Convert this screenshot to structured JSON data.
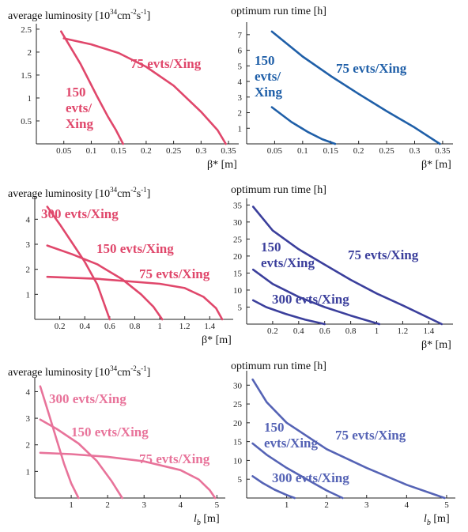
{
  "chart_data": [
    {
      "id": "p1",
      "type": "line",
      "title": "average luminosity",
      "title_unit": "[10",
      "title_exp1": "34",
      "title_mid": "cm",
      "title_exp2": "-2",
      "title_mid2": "s",
      "title_exp3": "-1",
      "title_end": "]",
      "xlabel_main": "β*",
      "xlabel_unit": "[m]",
      "xlim": [
        0,
        0.36
      ],
      "ylim": [
        0,
        2.55
      ],
      "xticks": [
        0.05,
        0.1,
        0.15,
        0.2,
        0.25,
        0.3,
        0.35
      ],
      "xtick_labels": [
        "0.05",
        "0.1",
        "0.15",
        "0.2",
        "0.25",
        "0.3",
        "0.35"
      ],
      "yticks": [
        0.5,
        1,
        1.5,
        2,
        2.5
      ],
      "ytick_labels": [
        "0.5",
        "1",
        "1.5",
        "2",
        "2.5"
      ],
      "color": "#e0476b",
      "series": [
        {
          "name": "75 evts/Xing",
          "label_lines": [
            "75 evts/Xing"
          ],
          "x": [
            0.05,
            0.1,
            0.15,
            0.2,
            0.25,
            0.3,
            0.33,
            0.345
          ],
          "y": [
            2.3,
            2.17,
            1.98,
            1.68,
            1.27,
            0.7,
            0.3,
            0
          ]
        },
        {
          "name": "150 evts/Xing",
          "label_lines": [
            "150",
            "evts/",
            "Xing"
          ],
          "x": [
            0.045,
            0.08,
            0.11,
            0.13,
            0.145,
            0.158
          ],
          "y": [
            2.45,
            1.75,
            1.05,
            0.6,
            0.3,
            0
          ]
        }
      ]
    },
    {
      "id": "p2",
      "type": "line",
      "title": "optimum run time [h]",
      "xlabel_main": "β*",
      "xlabel_unit": "[m]",
      "xlim": [
        0,
        0.36
      ],
      "ylim": [
        0,
        7.6
      ],
      "xticks": [
        0.05,
        0.1,
        0.15,
        0.2,
        0.25,
        0.3,
        0.35
      ],
      "xtick_labels": [
        "0.05",
        "0.1",
        "0.15",
        "0.2",
        "0.25",
        "0.3",
        "0.35"
      ],
      "yticks": [
        1,
        2,
        3,
        4,
        5,
        6,
        7
      ],
      "ytick_labels": [
        "1",
        "2",
        "3",
        "4",
        "5",
        "6",
        "7"
      ],
      "color": "#1f5fa8",
      "series": [
        {
          "name": "75 evts/Xing",
          "label_lines": [
            "75 evts/Xing"
          ],
          "x": [
            0.045,
            0.1,
            0.15,
            0.2,
            0.25,
            0.3,
            0.345
          ],
          "y": [
            7.2,
            5.6,
            4.35,
            3.2,
            2.1,
            1.05,
            0
          ]
        },
        {
          "name": "150 evts/Xing",
          "label_lines": [
            "150",
            "evts/",
            "Xing"
          ],
          "x": [
            0.045,
            0.08,
            0.11,
            0.135,
            0.158
          ],
          "y": [
            2.35,
            1.4,
            0.75,
            0.3,
            0
          ]
        }
      ]
    },
    {
      "id": "p3",
      "type": "line",
      "title": "average luminosity",
      "title_unit": "[10",
      "title_exp1": "34",
      "title_mid": "cm",
      "title_exp2": "-2",
      "title_mid2": "s",
      "title_exp3": "-1",
      "title_end": "]",
      "xlabel_main": "β*",
      "xlabel_unit": "[m]",
      "xlim": [
        0,
        1.55
      ],
      "ylim": [
        0,
        4.8
      ],
      "xticks": [
        0.2,
        0.4,
        0.6,
        0.8,
        1.0,
        1.2,
        1.4
      ],
      "xtick_labels": [
        "0.2",
        "0.4",
        "0.6",
        "0.8",
        "1",
        "1.2",
        "1.4"
      ],
      "yticks": [
        1,
        2,
        3,
        4
      ],
      "ytick_labels": [
        "1",
        "2",
        "3",
        "4"
      ],
      "color": "#e0476b",
      "series": [
        {
          "name": "300 evts/Xing",
          "label_lines": [
            "300 evts/Xing"
          ],
          "x": [
            0.1,
            0.2,
            0.3,
            0.4,
            0.5,
            0.55,
            0.6
          ],
          "y": [
            4.5,
            3.8,
            3.05,
            2.3,
            1.4,
            0.7,
            0
          ]
        },
        {
          "name": "150 evts/Xing",
          "label_lines": [
            "150 evts/Xing"
          ],
          "x": [
            0.1,
            0.3,
            0.5,
            0.7,
            0.85,
            0.95,
            1.02
          ],
          "y": [
            2.95,
            2.6,
            2.2,
            1.6,
            1.0,
            0.5,
            0
          ]
        },
        {
          "name": "75 evts/Xing",
          "label_lines": [
            "75 evts/Xing"
          ],
          "x": [
            0.1,
            0.5,
            1.0,
            1.2,
            1.35,
            1.45,
            1.5
          ],
          "y": [
            1.7,
            1.62,
            1.42,
            1.25,
            0.9,
            0.45,
            0
          ]
        }
      ]
    },
    {
      "id": "p4",
      "type": "line",
      "title": "optimum run time [h]",
      "xlabel_main": "β*",
      "xlabel_unit": "[m]",
      "xlim": [
        0,
        1.55
      ],
      "ylim": [
        0,
        36
      ],
      "xticks": [
        0.2,
        0.4,
        0.6,
        0.8,
        1.0,
        1.2,
        1.4
      ],
      "xtick_labels": [
        "0.2",
        "0.4",
        "0.6",
        "0.8",
        "1",
        "1.2",
        "1.4"
      ],
      "yticks": [
        5,
        10,
        15,
        20,
        25,
        30,
        35
      ],
      "ytick_labels": [
        "5",
        "10",
        "15",
        "20",
        "25",
        "30",
        "35"
      ],
      "color": "#3b3f9c",
      "series": [
        {
          "name": "75 evts/Xing",
          "label_lines": [
            "75 evts/Xing"
          ],
          "x": [
            0.05,
            0.2,
            0.4,
            0.6,
            0.8,
            1.0,
            1.2,
            1.5
          ],
          "y": [
            34.5,
            27.5,
            22.0,
            17.5,
            13.0,
            9.0,
            5.5,
            0
          ]
        },
        {
          "name": "150 evts/Xing",
          "label_lines": [
            "150",
            "evts/Xing"
          ],
          "x": [
            0.05,
            0.2,
            0.4,
            0.6,
            0.8,
            1.02
          ],
          "y": [
            16.0,
            11.8,
            8.0,
            5.0,
            2.5,
            0
          ]
        },
        {
          "name": "300 evts/Xing",
          "label_lines": [
            "300 evts/Xing"
          ],
          "x": [
            0.05,
            0.15,
            0.3,
            0.45,
            0.6
          ],
          "y": [
            7.0,
            5.0,
            3.0,
            1.3,
            0
          ]
        }
      ]
    },
    {
      "id": "p5",
      "type": "line",
      "title": "average luminosity",
      "title_unit": "[10",
      "title_exp1": "34",
      "title_mid": "cm",
      "title_exp2": "-2",
      "title_mid2": "s",
      "title_exp3": "-1",
      "title_end": "]",
      "xlabel_main": "l",
      "xlabel_sub": "b",
      "xlabel_unit": "[m]",
      "xlim": [
        0,
        5.1
      ],
      "ylim": [
        0,
        4.4
      ],
      "xticks": [
        1,
        2,
        3,
        4,
        5
      ],
      "xtick_labels": [
        "1",
        "2",
        "3",
        "4",
        "5"
      ],
      "yticks": [
        1,
        2,
        3,
        4
      ],
      "ytick_labels": [
        "1",
        "2",
        "3",
        "4"
      ],
      "color": "#e8739a",
      "series": [
        {
          "name": "300 evts/Xing",
          "label_lines": [
            "300 evts/Xing"
          ],
          "x": [
            0.15,
            0.4,
            0.6,
            0.8,
            1.0,
            1.2
          ],
          "y": [
            4.2,
            3.1,
            2.2,
            1.3,
            0.55,
            0
          ]
        },
        {
          "name": "150 evts/Xing",
          "label_lines": [
            "150 evts/Xing"
          ],
          "x": [
            0.15,
            0.6,
            1.2,
            1.7,
            2.1,
            2.4
          ],
          "y": [
            2.95,
            2.6,
            2.05,
            1.4,
            0.65,
            0
          ]
        },
        {
          "name": "75 evts/Xing",
          "label_lines": [
            "75 evts/Xing"
          ],
          "x": [
            0.15,
            1.0,
            2.0,
            3.0,
            4.0,
            4.5,
            4.8,
            4.95
          ],
          "y": [
            1.7,
            1.65,
            1.55,
            1.38,
            1.05,
            0.7,
            0.3,
            0
          ]
        }
      ]
    },
    {
      "id": "p6",
      "type": "line",
      "title": "optimum run time [h]",
      "xlabel_main": "l",
      "xlabel_sub": "b",
      "xlabel_unit": "[m]",
      "xlim": [
        0,
        5.1
      ],
      "ylim": [
        0,
        33
      ],
      "xticks": [
        1,
        2,
        3,
        4,
        5
      ],
      "xtick_labels": [
        "1",
        "2",
        "3",
        "4",
        "5"
      ],
      "yticks": [
        5,
        10,
        15,
        20,
        25,
        30
      ],
      "ytick_labels": [
        "5",
        "10",
        "15",
        "20",
        "25",
        "30"
      ],
      "color": "#5563b5",
      "series": [
        {
          "name": "75 evts/Xing",
          "label_lines": [
            "75 evts/Xing"
          ],
          "x": [
            0.15,
            0.5,
            1.0,
            2.0,
            3.0,
            4.0,
            4.95
          ],
          "y": [
            31.5,
            25.5,
            20.0,
            13.0,
            8.0,
            3.5,
            0
          ]
        },
        {
          "name": "150 evts/Xing",
          "label_lines": [
            "150",
            "evts/Xing"
          ],
          "x": [
            0.15,
            0.5,
            1.0,
            1.5,
            2.0,
            2.4
          ],
          "y": [
            14.5,
            11.5,
            8.0,
            5.0,
            2.0,
            0
          ]
        },
        {
          "name": "300 evts/Xing",
          "label_lines": [
            "300 evts/Xing"
          ],
          "x": [
            0.15,
            0.4,
            0.7,
            1.0,
            1.2
          ],
          "y": [
            5.8,
            4.0,
            2.2,
            0.8,
            0
          ]
        }
      ]
    }
  ]
}
